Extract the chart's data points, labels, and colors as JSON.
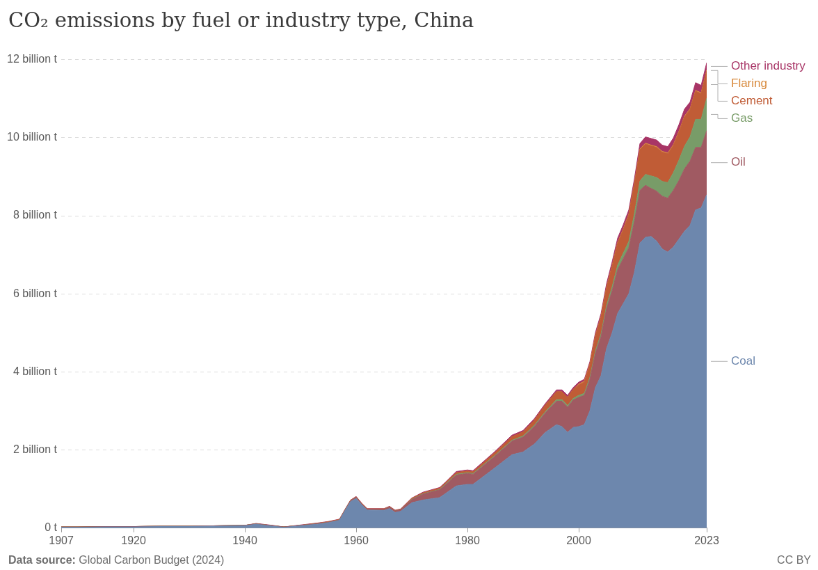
{
  "chart_data": {
    "type": "area",
    "stacked": true,
    "title": "CO₂ emissions by fuel or industry type, China",
    "annotations": [
      "Data source: Global Carbon Budget (2024)",
      "CC BY"
    ],
    "x": [
      1907,
      1910,
      1915,
      1920,
      1925,
      1930,
      1935,
      1940,
      1942,
      1945,
      1947,
      1950,
      1953,
      1955,
      1957,
      1958,
      1959,
      1960,
      1961,
      1962,
      1965,
      1966,
      1967,
      1968,
      1970,
      1972,
      1975,
      1976,
      1978,
      1980,
      1981,
      1985,
      1988,
      1990,
      1992,
      1994,
      1996,
      1997,
      1998,
      1999,
      2000,
      2001,
      2002,
      2003,
      2004,
      2005,
      2006,
      2007,
      2008,
      2009,
      2010,
      2011,
      2012,
      2013,
      2014,
      2015,
      2016,
      2017,
      2018,
      2019,
      2020,
      2021,
      2022,
      2023
    ],
    "xlim": [
      1907,
      2023
    ],
    "xticks": [
      1907,
      1920,
      1940,
      1960,
      1980,
      2000,
      2023
    ],
    "ylim": [
      0,
      12
    ],
    "yticks": [
      {
        "value": 0,
        "label": "0 t"
      },
      {
        "value": 2,
        "label": "2 billion t"
      },
      {
        "value": 4,
        "label": "4 billion t"
      },
      {
        "value": 6,
        "label": "6 billion t"
      },
      {
        "value": 8,
        "label": "8 billion t"
      },
      {
        "value": 10,
        "label": "10 billion t"
      },
      {
        "value": 12,
        "label": "12 billion t"
      }
    ],
    "grid": "y",
    "marker": "none",
    "legend": "right",
    "series": [
      {
        "name": "Coal",
        "color": "#6d87ad",
        "values": [
          0.02,
          0.02,
          0.03,
          0.03,
          0.04,
          0.04,
          0.05,
          0.06,
          0.1,
          0.05,
          0.02,
          0.06,
          0.1,
          0.14,
          0.2,
          0.45,
          0.68,
          0.76,
          0.6,
          0.46,
          0.45,
          0.5,
          0.4,
          0.43,
          0.65,
          0.72,
          0.78,
          0.88,
          1.08,
          1.12,
          1.12,
          1.55,
          1.88,
          1.95,
          2.15,
          2.45,
          2.65,
          2.6,
          2.45,
          2.58,
          2.6,
          2.65,
          3.0,
          3.6,
          3.9,
          4.6,
          5.0,
          5.5,
          5.75,
          6.0,
          6.55,
          7.3,
          7.45,
          7.47,
          7.35,
          7.15,
          7.07,
          7.2,
          7.4,
          7.6,
          7.75,
          8.15,
          8.2,
          8.54
        ]
      },
      {
        "name": "Oil",
        "color": "#a05a62",
        "values": [
          0.01,
          0.01,
          0.01,
          0.01,
          0.01,
          0.01,
          0.01,
          0.01,
          0.01,
          0.01,
          0.01,
          0.01,
          0.01,
          0.01,
          0.01,
          0.01,
          0.02,
          0.03,
          0.02,
          0.02,
          0.03,
          0.04,
          0.04,
          0.04,
          0.08,
          0.15,
          0.2,
          0.22,
          0.28,
          0.28,
          0.26,
          0.3,
          0.35,
          0.38,
          0.45,
          0.5,
          0.6,
          0.65,
          0.65,
          0.7,
          0.75,
          0.75,
          0.8,
          0.88,
          1.0,
          1.02,
          1.08,
          1.12,
          1.15,
          1.18,
          1.3,
          1.35,
          1.33,
          1.23,
          1.28,
          1.35,
          1.38,
          1.45,
          1.5,
          1.6,
          1.65,
          1.6,
          1.55,
          1.64
        ]
      },
      {
        "name": "Gas",
        "color": "#789c68",
        "values": [
          0,
          0,
          0,
          0,
          0,
          0,
          0,
          0,
          0,
          0,
          0,
          0,
          0,
          0,
          0,
          0,
          0,
          0,
          0,
          0,
          0,
          0,
          0,
          0,
          0.01,
          0.01,
          0.01,
          0.02,
          0.02,
          0.02,
          0.02,
          0.02,
          0.02,
          0.03,
          0.03,
          0.03,
          0.04,
          0.04,
          0.04,
          0.04,
          0.05,
          0.05,
          0.06,
          0.06,
          0.07,
          0.08,
          0.1,
          0.12,
          0.14,
          0.16,
          0.2,
          0.24,
          0.28,
          0.32,
          0.35,
          0.38,
          0.4,
          0.45,
          0.52,
          0.58,
          0.62,
          0.72,
          0.72,
          0.83
        ]
      },
      {
        "name": "Cement",
        "color": "#c05c36",
        "values": [
          0,
          0,
          0,
          0,
          0,
          0,
          0,
          0,
          0,
          0,
          0,
          0,
          0.01,
          0.01,
          0.01,
          0.01,
          0.01,
          0.01,
          0.01,
          0.01,
          0.01,
          0.01,
          0.01,
          0.01,
          0.02,
          0.02,
          0.03,
          0.03,
          0.04,
          0.04,
          0.04,
          0.07,
          0.09,
          0.1,
          0.13,
          0.17,
          0.2,
          0.2,
          0.21,
          0.23,
          0.27,
          0.29,
          0.32,
          0.38,
          0.42,
          0.45,
          0.52,
          0.56,
          0.6,
          0.68,
          0.75,
          0.8,
          0.78,
          0.77,
          0.77,
          0.75,
          0.74,
          0.7,
          0.72,
          0.75,
          0.7,
          0.72,
          0.66,
          0.7
        ]
      },
      {
        "name": "Flaring",
        "color": "#d88a3d",
        "values": [
          0,
          0,
          0,
          0,
          0,
          0,
          0,
          0,
          0,
          0,
          0,
          0,
          0,
          0,
          0,
          0,
          0,
          0,
          0,
          0,
          0,
          0,
          0,
          0,
          0,
          0,
          0,
          0,
          0,
          0,
          0,
          0,
          0,
          0,
          0,
          0,
          0,
          0,
          0,
          0,
          0.02,
          0.02,
          0.02,
          0.02,
          0.02,
          0.02,
          0.02,
          0.02,
          0.02,
          0.02,
          0.02,
          0.02,
          0.02,
          0.02,
          0.02,
          0.02,
          0.02,
          0.02,
          0.02,
          0.02,
          0.02,
          0.02,
          0.02,
          0.02
        ]
      },
      {
        "name": "Other industry",
        "color": "#a83566",
        "values": [
          0,
          0,
          0,
          0,
          0,
          0,
          0,
          0,
          0.01,
          0.01,
          0,
          0.01,
          0.01,
          0.01,
          0.01,
          0.01,
          0.01,
          0.01,
          0.01,
          0.01,
          0.01,
          0.01,
          0.01,
          0.01,
          0.01,
          0.02,
          0.02,
          0.02,
          0.03,
          0.03,
          0.03,
          0.03,
          0.04,
          0.04,
          0.04,
          0.04,
          0.05,
          0.05,
          0.05,
          0.05,
          0.05,
          0.05,
          0.06,
          0.07,
          0.08,
          0.09,
          0.1,
          0.11,
          0.11,
          0.11,
          0.12,
          0.14,
          0.16,
          0.17,
          0.17,
          0.16,
          0.16,
          0.17,
          0.17,
          0.18,
          0.17,
          0.2,
          0.19,
          0.19
        ]
      }
    ]
  }
}
